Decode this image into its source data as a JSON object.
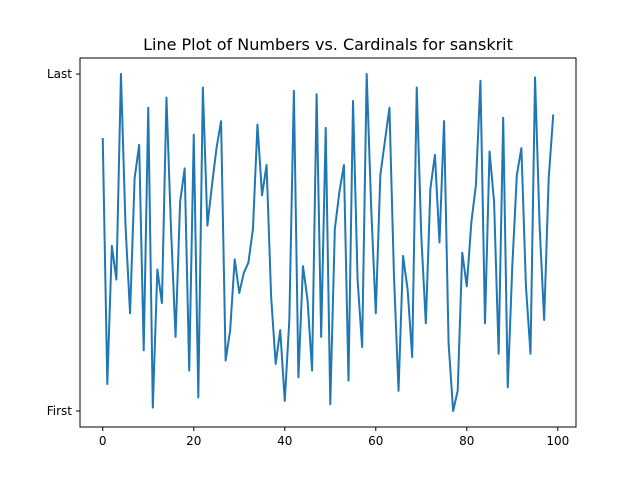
{
  "chart_data": {
    "type": "line",
    "title": "Line Plot of Numbers vs. Cardinals for sanskrit",
    "xlabel": "",
    "ylabel": "",
    "xlim": [
      -5,
      104
    ],
    "ylim": [
      0.0,
      1.0
    ],
    "xticks": [
      0,
      20,
      40,
      60,
      80,
      100
    ],
    "yticks": [
      {
        "value": 0.0,
        "label": "First"
      },
      {
        "value": 1.0,
        "label": "Last"
      }
    ],
    "grid": false,
    "series": [
      {
        "color": "#1f77b4",
        "x": [
          0,
          1,
          2,
          3,
          4,
          5,
          6,
          7,
          8,
          9,
          10,
          11,
          12,
          13,
          14,
          15,
          16,
          17,
          18,
          19,
          20,
          21,
          22,
          23,
          24,
          25,
          26,
          27,
          28,
          29,
          30,
          31,
          32,
          33,
          34,
          35,
          36,
          37,
          38,
          39,
          40,
          41,
          42,
          43,
          44,
          45,
          46,
          47,
          48,
          49,
          50,
          51,
          52,
          53,
          54,
          55,
          56,
          57,
          58,
          59,
          60,
          61,
          62,
          63,
          64,
          65,
          66,
          67,
          68,
          69,
          70,
          71,
          72,
          73,
          74,
          75,
          76,
          77,
          78,
          79,
          80,
          81,
          82,
          83,
          84,
          85,
          86,
          87,
          88,
          89,
          90,
          91,
          92,
          93,
          94,
          95,
          96,
          97,
          98,
          99
        ],
        "values": [
          0.81,
          0.08,
          0.49,
          0.39,
          1.0,
          0.55,
          0.29,
          0.69,
          0.79,
          0.18,
          0.9,
          0.01,
          0.42,
          0.32,
          0.93,
          0.54,
          0.22,
          0.62,
          0.72,
          0.12,
          0.82,
          0.04,
          0.96,
          0.55,
          0.67,
          0.78,
          0.86,
          0.15,
          0.24,
          0.45,
          0.35,
          0.41,
          0.44,
          0.54,
          0.85,
          0.64,
          0.73,
          0.34,
          0.14,
          0.24,
          0.03,
          0.27,
          0.95,
          0.1,
          0.43,
          0.33,
          0.12,
          0.94,
          0.22,
          0.84,
          0.02,
          0.54,
          0.65,
          0.73,
          0.09,
          0.92,
          0.39,
          0.19,
          1.0,
          0.6,
          0.29,
          0.7,
          0.8,
          0.9,
          0.4,
          0.06,
          0.46,
          0.36,
          0.16,
          0.96,
          0.52,
          0.26,
          0.66,
          0.76,
          0.5,
          0.86,
          0.2,
          0.0,
          0.06,
          0.47,
          0.37,
          0.56,
          0.67,
          0.98,
          0.26,
          0.77,
          0.62,
          0.17,
          0.87,
          0.07,
          0.43,
          0.7,
          0.78,
          0.37,
          0.17,
          0.99,
          0.55,
          0.27,
          0.69,
          0.88
        ]
      }
    ]
  }
}
